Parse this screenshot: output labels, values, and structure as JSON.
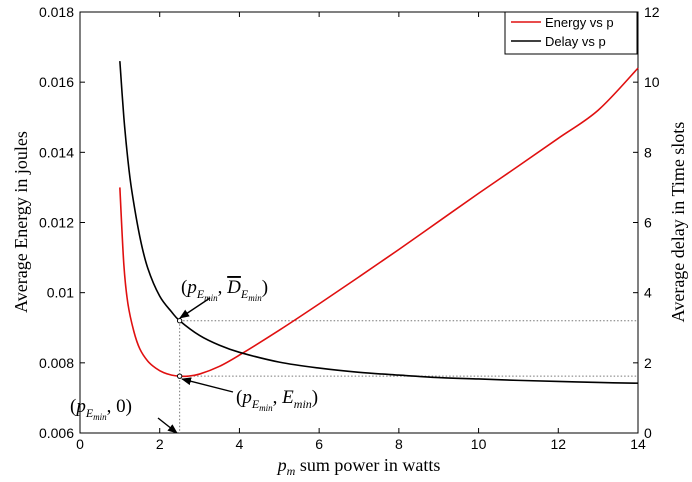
{
  "chart_data": {
    "type": "line",
    "title": "",
    "xlabel": "p_m sum power in watts",
    "ylabel_left": "Average Energy in joules",
    "ylabel_right": "Average delay in Time slots",
    "xlim": [
      0,
      14
    ],
    "ylim_left": [
      0.006,
      0.018
    ],
    "ylim_right": [
      0,
      12
    ],
    "x_ticks": [
      "0",
      "2",
      "4",
      "6",
      "8",
      "10",
      "12",
      "14"
    ],
    "y_left_ticks": [
      "0.006",
      "0.008",
      "0.01",
      "0.012",
      "0.014",
      "0.016",
      "0.018"
    ],
    "y_right_ticks": [
      "0",
      "2",
      "4",
      "6",
      "8",
      "10",
      "12"
    ],
    "grid": false,
    "legend_position": "top-right",
    "series": [
      {
        "name": "Energy vs p",
        "axis": "left",
        "color": "#e01010",
        "x": [
          1.0,
          1.1,
          1.2,
          1.35,
          1.5,
          1.7,
          1.9,
          2.1,
          2.3,
          2.5,
          2.7,
          3.0,
          3.5,
          4.0,
          5.0,
          6.0,
          7.0,
          8.0,
          9.0,
          10.0,
          11.0,
          12.0,
          13.0,
          14.0
        ],
        "values": [
          0.013,
          0.0108,
          0.0097,
          0.0089,
          0.0084,
          0.00805,
          0.00785,
          0.00772,
          0.00765,
          0.00762,
          0.00762,
          0.00768,
          0.0079,
          0.00822,
          0.00893,
          0.00968,
          0.01045,
          0.01123,
          0.01203,
          0.01283,
          0.01361,
          0.0144,
          0.0152,
          0.0164
        ]
      },
      {
        "name": "Delay vs p",
        "axis": "right",
        "color": "#000000",
        "x": [
          1.0,
          1.1,
          1.2,
          1.3,
          1.5,
          1.7,
          2.0,
          2.3,
          2.5,
          3.0,
          3.5,
          4.0,
          5.0,
          6.0,
          7.0,
          8.0,
          9.0,
          10.0,
          11.0,
          12.0,
          13.0,
          14.0
        ],
        "values": [
          10.6,
          9.0,
          7.8,
          6.9,
          5.6,
          4.7,
          3.9,
          3.45,
          3.2,
          2.78,
          2.5,
          2.3,
          2.02,
          1.85,
          1.73,
          1.65,
          1.58,
          1.54,
          1.5,
          1.47,
          1.44,
          1.42
        ]
      }
    ],
    "reference_lines": {
      "p_opt": 2.5,
      "energy_min": 0.00762,
      "delay_at_p_opt": 3.2
    },
    "annotations": {
      "delay_point": "(p_{E_{min}}, \\overline{D}_{E_{min}})",
      "energy_point": "(p_{E_{min}}, E_{min})",
      "x_point": "(p_{E_{min}}, 0)"
    }
  }
}
